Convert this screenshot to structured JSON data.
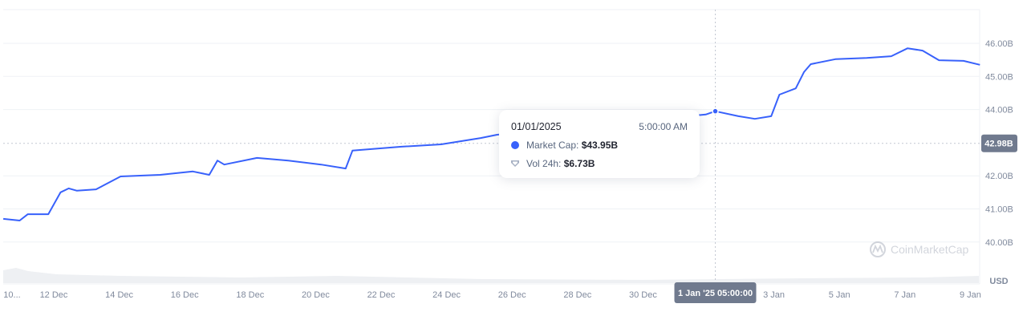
{
  "chart_data": {
    "type": "line",
    "currency_label": "USD",
    "watermark": "CoinMarketCap",
    "line_color": "#3861fb",
    "grid": true,
    "y_ticks": [
      "40.00B",
      "41.00B",
      "42.00B",
      "44.00B",
      "45.00B",
      "46.00B"
    ],
    "y_tick_values": [
      40,
      41,
      42,
      44,
      45,
      46
    ],
    "ylim": [
      39.2,
      46.3
    ],
    "x_ticks": [
      {
        "label": "10...",
        "date": "2024-12-10"
      },
      {
        "label": "12 Dec",
        "date": "2024-12-12"
      },
      {
        "label": "14 Dec",
        "date": "2024-12-14"
      },
      {
        "label": "16 Dec",
        "date": "2024-12-16"
      },
      {
        "label": "18 Dec",
        "date": "2024-12-18"
      },
      {
        "label": "20 Dec",
        "date": "2024-12-20"
      },
      {
        "label": "22 Dec",
        "date": "2024-12-22"
      },
      {
        "label": "24 Dec",
        "date": "2024-12-24"
      },
      {
        "label": "26 Dec",
        "date": "2024-12-26"
      },
      {
        "label": "28 Dec",
        "date": "2024-12-28"
      },
      {
        "label": "30 Dec",
        "date": "2024-12-30"
      },
      {
        "label": "3 Jan",
        "date": "2025-01-03"
      },
      {
        "label": "5 Jan",
        "date": "2025-01-05"
      },
      {
        "label": "7 Jan",
        "date": "2025-01-07"
      },
      {
        "label": "9 Jan",
        "date": "2025-01-09"
      }
    ],
    "series": [
      {
        "unit": "B USD",
        "points": [
          [
            "2024-12-10T11:00",
            40.7
          ],
          [
            "2024-12-10T23:00",
            40.65
          ],
          [
            "2024-12-11T05:00",
            40.84
          ],
          [
            "2024-12-11T20:00",
            40.84
          ],
          [
            "2024-12-12T05:00",
            41.5
          ],
          [
            "2024-12-12T11:00",
            41.62
          ],
          [
            "2024-12-12T17:00",
            41.55
          ],
          [
            "2024-12-13T07:00",
            41.59
          ],
          [
            "2024-12-14T01:00",
            41.98
          ],
          [
            "2024-12-15T06:00",
            42.03
          ],
          [
            "2024-12-16T06:00",
            42.13
          ],
          [
            "2024-12-16T18:00",
            42.03
          ],
          [
            "2024-12-17T00:00",
            42.46
          ],
          [
            "2024-12-17T05:00",
            42.34
          ],
          [
            "2024-12-18T05:00",
            42.54
          ],
          [
            "2024-12-19T04:00",
            42.46
          ],
          [
            "2024-12-20T04:00",
            42.34
          ],
          [
            "2024-12-20T22:00",
            42.22
          ],
          [
            "2024-12-21T03:00",
            42.76
          ],
          [
            "2024-12-22T15:00",
            42.88
          ],
          [
            "2024-12-23T20:00",
            42.95
          ],
          [
            "2024-12-25T01:00",
            43.14
          ],
          [
            "2024-12-25T13:00",
            43.24
          ],
          [
            "2024-12-31T22:00",
            43.85
          ],
          [
            "2025-01-01T05:00",
            43.95
          ],
          [
            "2025-01-01T22:00",
            43.8
          ],
          [
            "2025-01-02T10:00",
            43.72
          ],
          [
            "2025-01-02T22:00",
            43.8
          ],
          [
            "2025-01-03T04:00",
            44.45
          ],
          [
            "2025-01-03T16:00",
            44.64
          ],
          [
            "2025-01-03T22:00",
            45.13
          ],
          [
            "2025-01-04T03:00",
            45.37
          ],
          [
            "2025-01-04T21:00",
            45.52
          ],
          [
            "2025-01-05T20:00",
            45.56
          ],
          [
            "2025-01-06T14:00",
            45.61
          ],
          [
            "2025-01-07T02:00",
            45.85
          ],
          [
            "2025-01-07T13:00",
            45.78
          ],
          [
            "2025-01-08T01:00",
            45.49
          ],
          [
            "2025-01-08T19:00",
            45.47
          ],
          [
            "2025-01-09T07:00",
            45.35
          ]
        ]
      }
    ],
    "crosshair": {
      "x_label": "1 Jan '25 05:00:00",
      "date": "2025-01-01T05:00",
      "y_label": "42.98B",
      "y_value": 42.98
    },
    "tooltip": {
      "date": "01/01/2025",
      "time": "5:00:00 AM",
      "market_cap_label": "Market Cap:",
      "market_cap_value": "$43.95B",
      "vol_label": "Vol 24h:",
      "vol_value": "$6.73B"
    }
  }
}
